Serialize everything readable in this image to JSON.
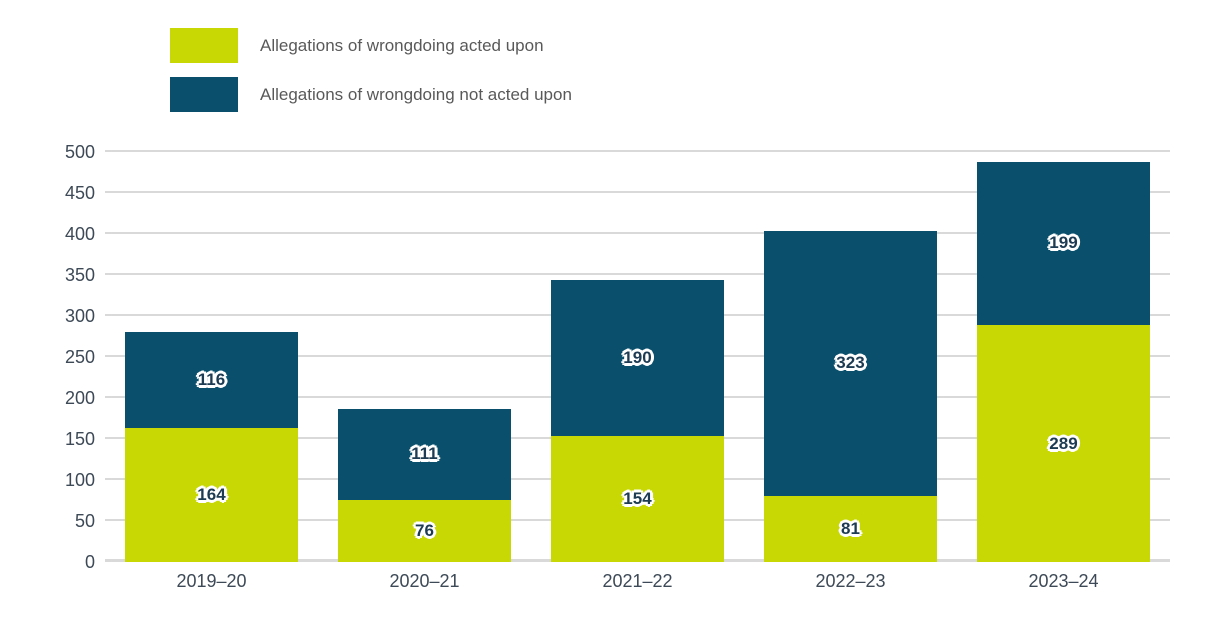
{
  "chart_data": {
    "type": "bar",
    "stacked": true,
    "title": "",
    "xlabel": "",
    "ylabel": "",
    "categories": [
      "2019–20",
      "2020–21",
      "2021–22",
      "2022–23",
      "2023–24"
    ],
    "series": [
      {
        "name": "Allegations of wrongdoing acted upon",
        "color": "#c7d805",
        "values": [
          164,
          76,
          154,
          81,
          289
        ]
      },
      {
        "name": "Allegations of wrongdoing not acted upon",
        "color": "#0a506d",
        "values": [
          116,
          111,
          190,
          323,
          199
        ]
      }
    ],
    "yticks": [
      0,
      50,
      100,
      150,
      200,
      250,
      300,
      350,
      400,
      450,
      500
    ],
    "ylim": [
      0,
      500
    ],
    "grid": "horizontal",
    "legend_position": "top-left"
  },
  "style": {
    "background": "#ffffff",
    "gridline_color": "#d9d9d9",
    "axis_text_color": "#3d4956",
    "legend_text_color": "#595959",
    "data_label_color": "#1d3b52"
  }
}
